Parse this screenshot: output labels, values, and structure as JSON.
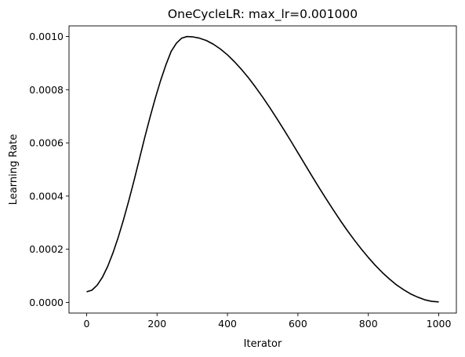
{
  "chart_data": {
    "type": "line",
    "title": "OneCycleLR: max_lr=0.001000",
    "xlabel": "Iterator",
    "ylabel": "Learning Rate",
    "xlim": [
      -50,
      1050
    ],
    "ylim": [
      -4e-05,
      0.00104
    ],
    "grid": false,
    "xticks": [
      0,
      200,
      400,
      600,
      800,
      1000
    ],
    "xtick_labels": [
      "0",
      "200",
      "400",
      "600",
      "800",
      "1000"
    ],
    "yticks": [
      0,
      0.0002,
      0.0004,
      0.0006,
      0.0008,
      0.001
    ],
    "ytick_labels": [
      "0.0000",
      "0.0002",
      "0.0004",
      "0.0006",
      "0.0008",
      "0.0010"
    ],
    "series": [
      {
        "color": "#000000",
        "x": [
          0,
          15,
          30,
          45,
          60,
          75,
          90,
          105,
          120,
          135,
          150,
          165,
          180,
          195,
          210,
          225,
          240,
          255,
          270,
          285,
          300,
          320,
          340,
          360,
          380,
          400,
          420,
          440,
          460,
          480,
          500,
          520,
          540,
          560,
          580,
          600,
          620,
          640,
          660,
          680,
          700,
          720,
          740,
          760,
          780,
          800,
          820,
          840,
          860,
          880,
          900,
          920,
          940,
          960,
          980,
          1000
        ],
        "y": [
          4e-05,
          4.6e-05,
          6.5e-05,
          9.5e-05,
          0.000136,
          0.000187,
          0.000246,
          0.000312,
          0.000384,
          0.00046,
          0.00054,
          0.00062,
          0.000696,
          0.000768,
          0.000834,
          0.000893,
          0.000944,
          0.000975,
          0.000994,
          0.001,
          0.000999,
          0.000994,
          0.000985,
          0.000971,
          0.000953,
          0.000931,
          0.000905,
          0.000876,
          0.000844,
          0.000809,
          0.000772,
          0.000733,
          0.000692,
          0.00065,
          0.000607,
          0.000563,
          0.000519,
          0.000475,
          0.000432,
          0.00039,
          0.000349,
          0.000309,
          0.000271,
          0.000235,
          0.000201,
          0.000169,
          0.000139,
          0.000112,
          8.8e-05,
          6.6e-05,
          4.8e-05,
          3.2e-05,
          2e-05,
          1e-05,
          4e-06,
          2e-06
        ]
      }
    ]
  }
}
